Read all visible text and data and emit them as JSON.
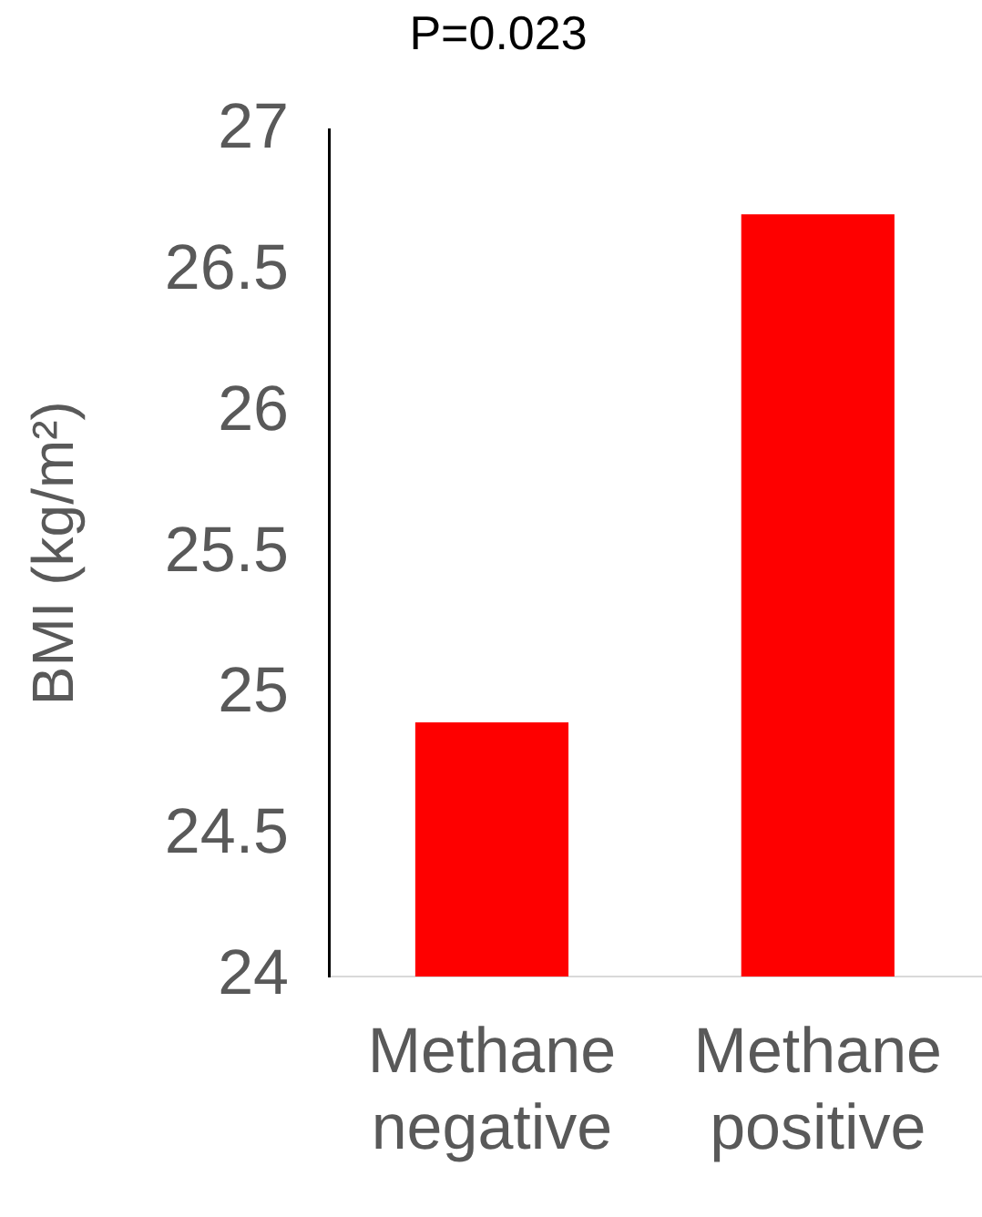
{
  "chart_data": {
    "type": "bar",
    "title": "P=0.023",
    "ylabel": "BMI (kg/m²)",
    "categories": [
      "Methane negative",
      "Methane positive"
    ],
    "values": [
      24.9,
      26.7
    ],
    "color": "#fe0000",
    "ylim": [
      24,
      27
    ],
    "yticks": [
      24,
      24.5,
      25,
      25.5,
      26,
      26.5,
      27
    ],
    "grid": false,
    "legend": false
  }
}
